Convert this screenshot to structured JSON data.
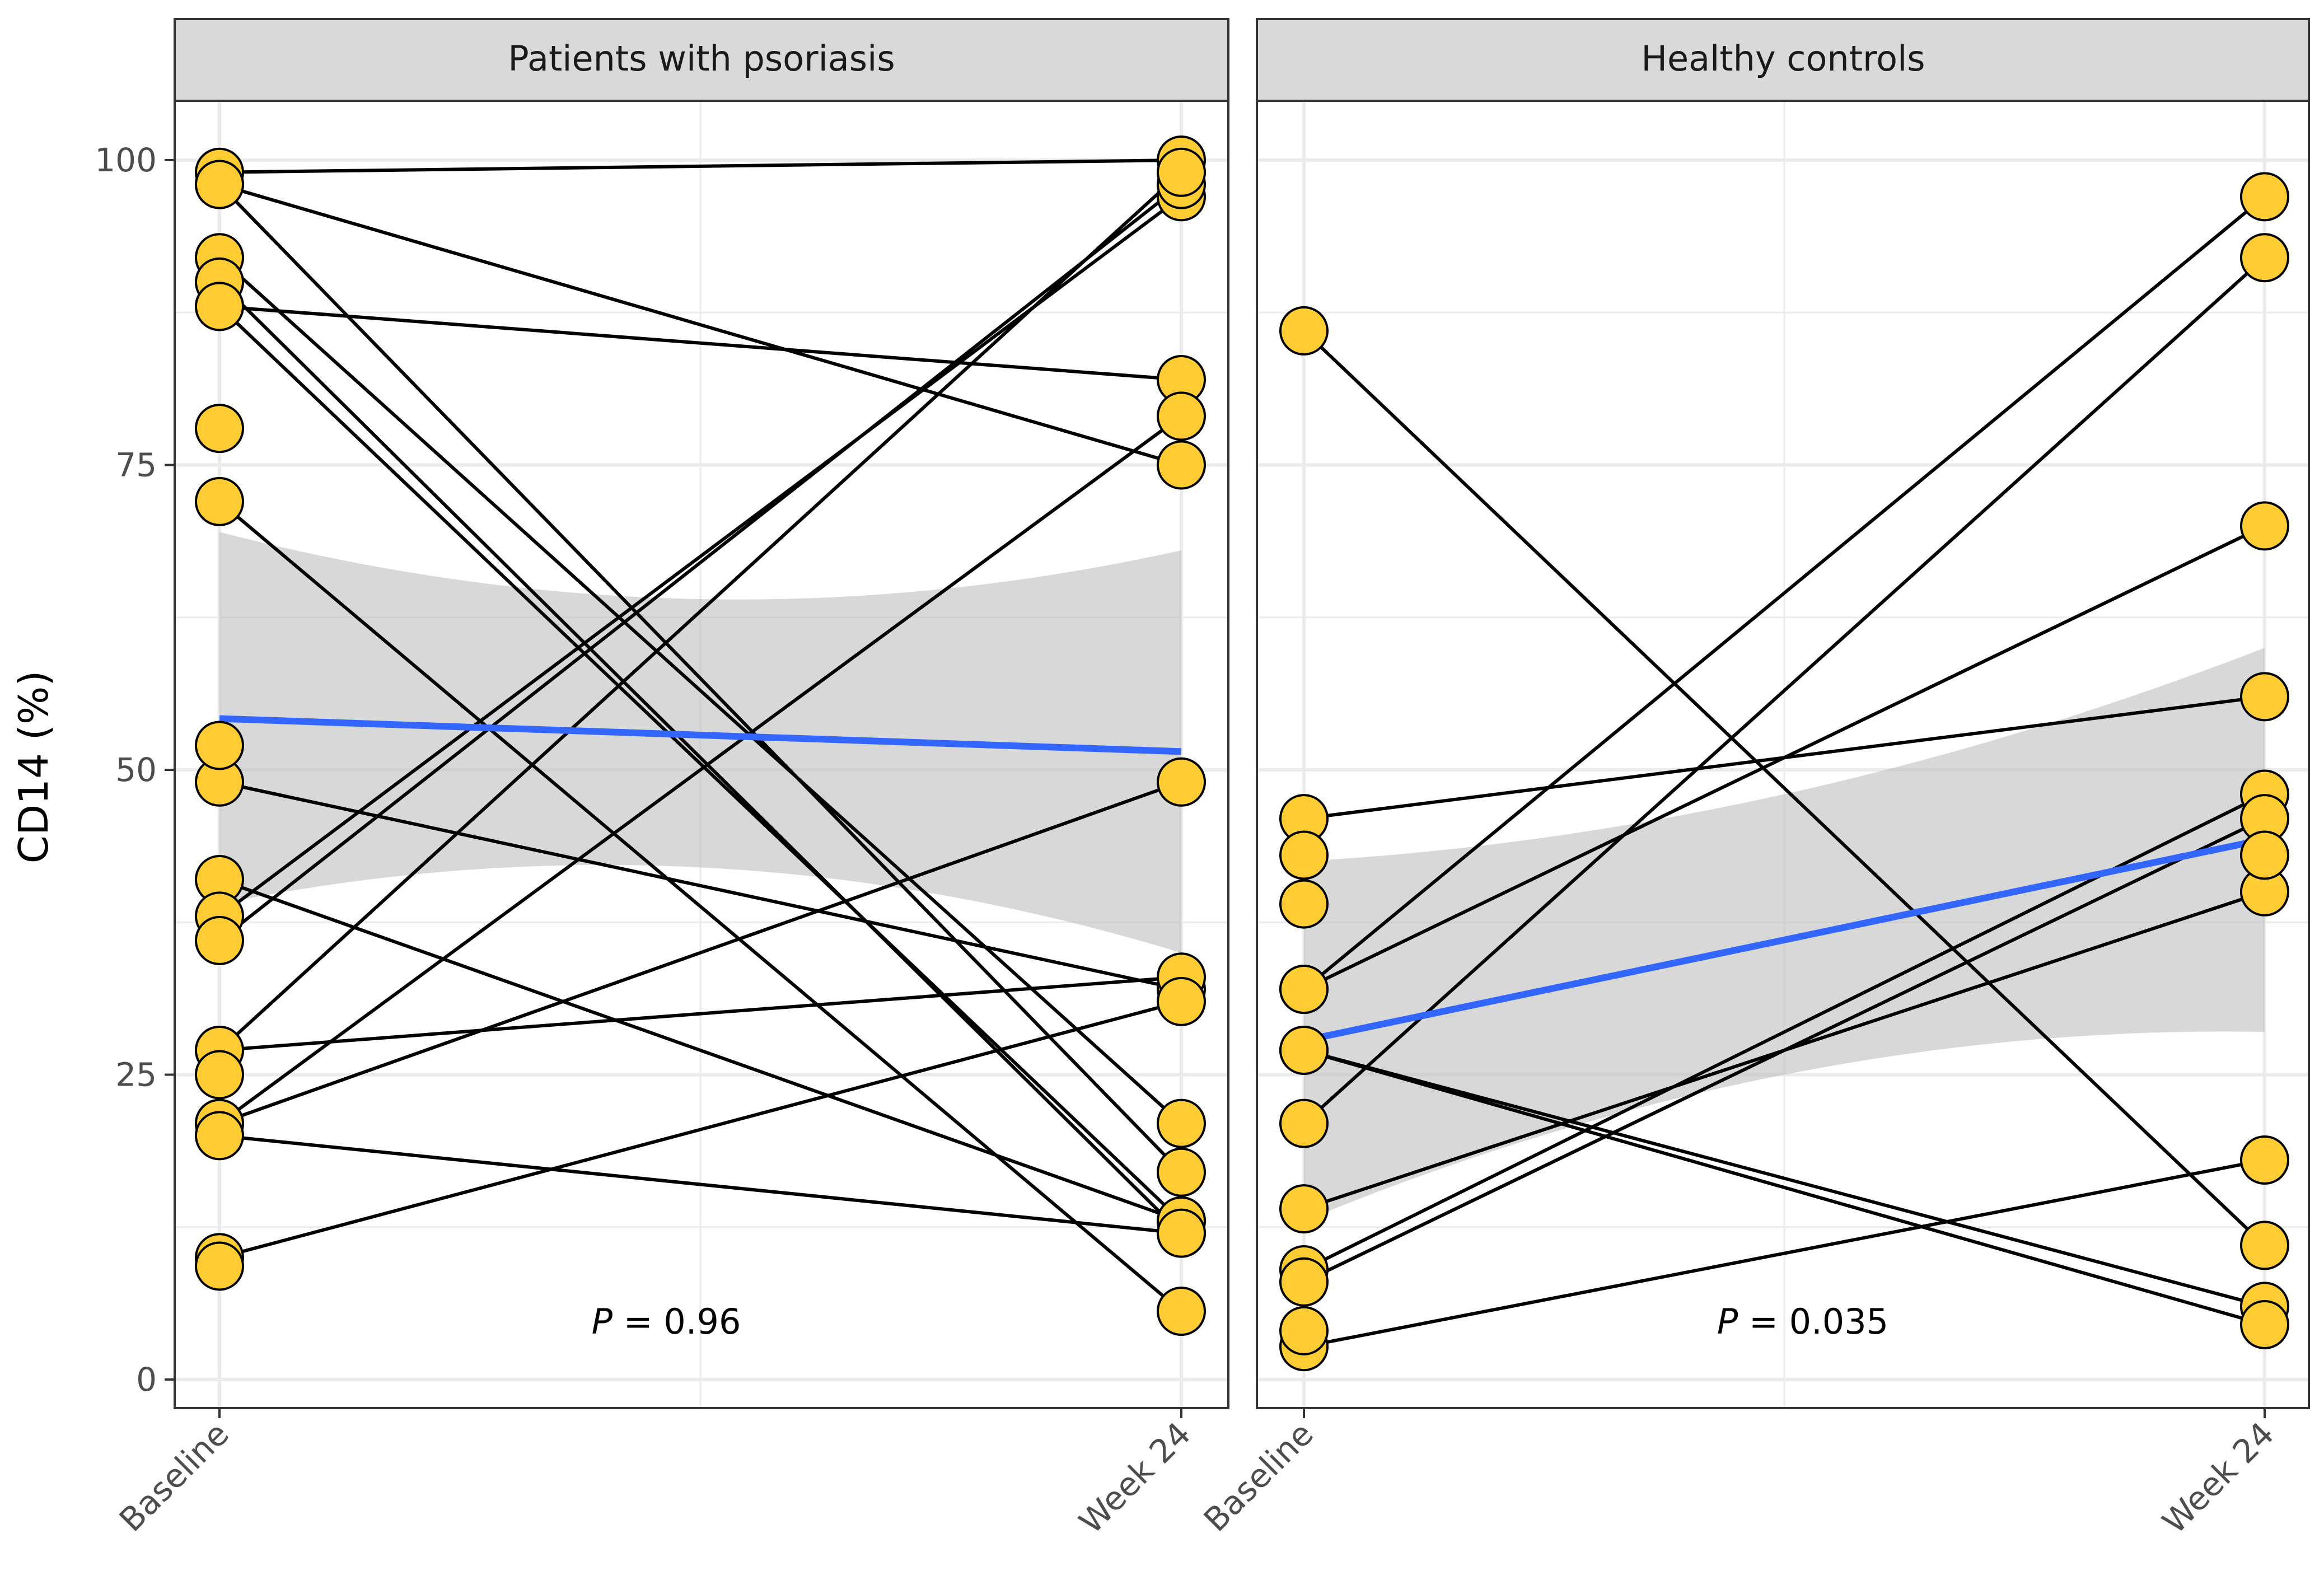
{
  "chart_data": {
    "type": "line",
    "ylabel": "CD14 (%)",
    "ylim": [
      0,
      105
    ],
    "yticks": [
      0,
      25,
      50,
      75,
      100
    ],
    "categories": [
      "Baseline",
      "Week 24"
    ],
    "grid": true,
    "colors": {
      "point_fill": "#FFCC33",
      "trend": "#3366FF",
      "ribbon": "#BEBEBE",
      "strip": "#D9D9D9"
    },
    "panels": [
      {
        "title": "Patients with psoriasis",
        "annotation_italic": "P",
        "annotation_value": " = 0.96",
        "pairs": [
          [
            99,
            100
          ],
          [
            98,
            75
          ],
          [
            98,
            17
          ],
          [
            92,
            21
          ],
          [
            90,
            12
          ],
          [
            88,
            82
          ],
          [
            88,
            13
          ],
          [
            72,
            5.6
          ],
          [
            49,
            32
          ],
          [
            41,
            13
          ],
          [
            38,
            97
          ],
          [
            36,
            98
          ],
          [
            27,
            33
          ],
          [
            27,
            99
          ],
          [
            21,
            79
          ],
          [
            21,
            49
          ],
          [
            20,
            12
          ],
          [
            10,
            31
          ]
        ],
        "unpaired_baseline": [
          78,
          52,
          25,
          9.3
        ],
        "trend": [
          54.2,
          51.5
        ],
        "ribbon_lower": [
          39,
          42,
          35
        ],
        "ribbon_upper": [
          69.5,
          64,
          68
        ]
      },
      {
        "title": "Healthy controls",
        "annotation_italic": "P",
        "annotation_value": " = 0.035",
        "pairs": [
          [
            86,
            11
          ],
          [
            46,
            56
          ],
          [
            32,
            97
          ],
          [
            32,
            70
          ],
          [
            27,
            6
          ],
          [
            27,
            4.5
          ],
          [
            21,
            92
          ],
          [
            14,
            40
          ],
          [
            9,
            48
          ],
          [
            8,
            46
          ],
          [
            2.7,
            18
          ]
        ],
        "unpaired_baseline": [
          43,
          39,
          4
        ],
        "unpaired_week": [
          43
        ],
        "trend": [
          27.8,
          44.3
        ],
        "ribbon_lower": [
          13,
          25,
          28.5
        ],
        "ribbon_upper": [
          42.5,
          48,
          60
        ]
      }
    ]
  }
}
